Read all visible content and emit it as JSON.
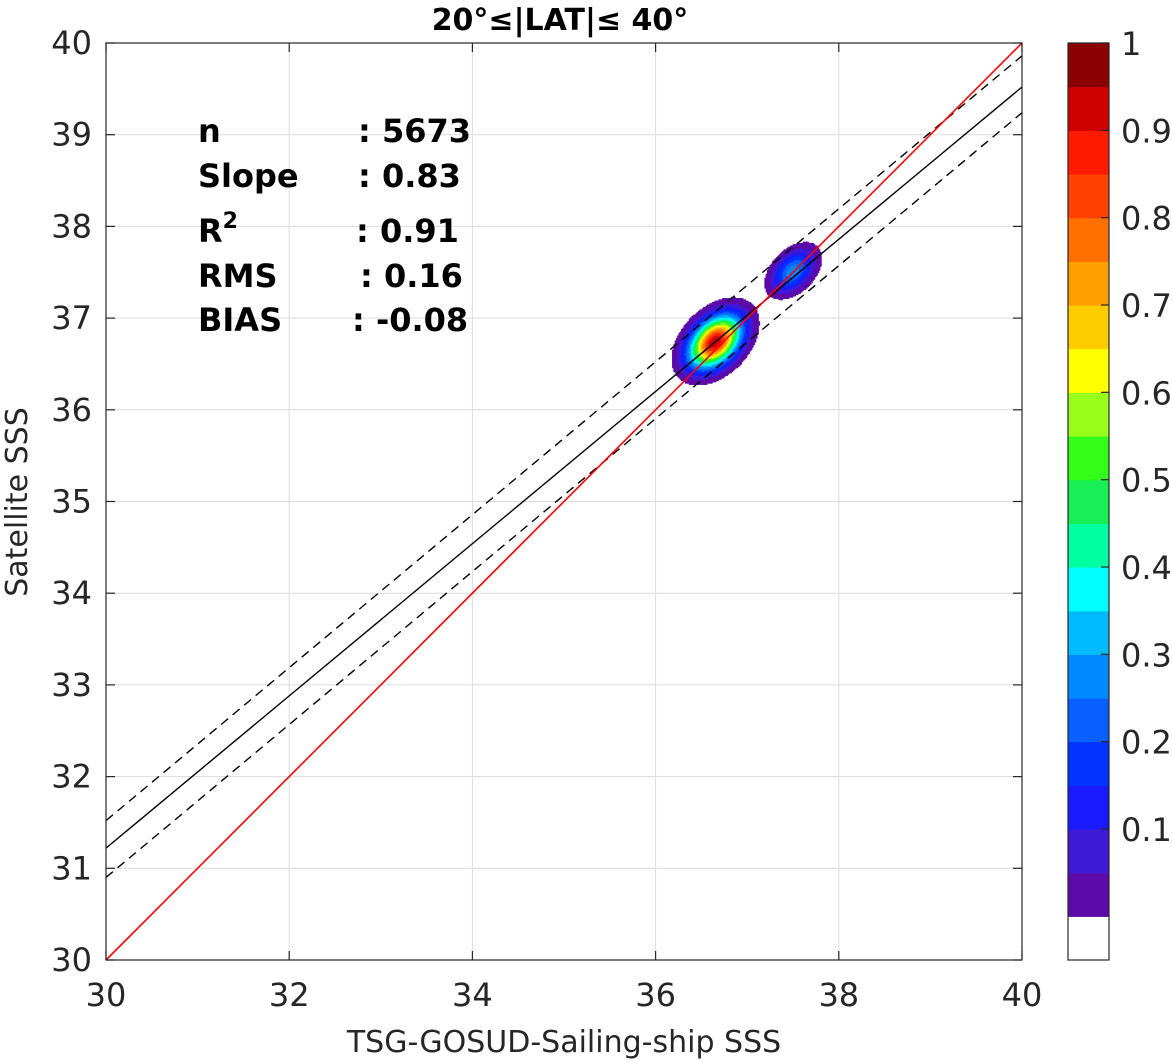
{
  "chart_data": {
    "type": "heatmap",
    "title": "20°≤|LAT|≤ 40°",
    "xlabel": "TSG-GOSUD-Sailing-ship SSS",
    "ylabel": "Satellite SSS",
    "xlim": [
      30,
      40
    ],
    "ylim": [
      30,
      40
    ],
    "xticks": [
      "30",
      "32",
      "34",
      "36",
      "38",
      "40"
    ],
    "yticks": [
      "30",
      "31",
      "32",
      "33",
      "34",
      "35",
      "36",
      "37",
      "38",
      "39",
      "40"
    ],
    "grid": true,
    "stats": [
      {
        "label": "n",
        "value": ": 5673"
      },
      {
        "label": "Slope",
        "value": ": 0.83"
      },
      {
        "label": "R",
        "sup": "2",
        "value": ": 0.91"
      },
      {
        "label": "RMS",
        "value": ": 0.16"
      },
      {
        "label": "BIAS",
        "value": ": -0.08"
      }
    ],
    "lines": {
      "one_to_one": {
        "color": "#ff0000",
        "x": [
          30,
          40
        ],
        "y": [
          30,
          40
        ]
      },
      "fit": {
        "color": "#000000",
        "style": "solid",
        "x": [
          30,
          40
        ],
        "y": [
          31.22,
          39.52
        ]
      },
      "fit_upper": {
        "color": "#000000",
        "style": "dashed",
        "x": [
          30,
          40
        ],
        "y": [
          31.52,
          39.86
        ]
      },
      "fit_lower": {
        "color": "#000000",
        "style": "dashed",
        "x": [
          30,
          40
        ],
        "y": [
          30.9,
          39.24
        ]
      }
    },
    "density_peaks": [
      {
        "x": 36.65,
        "y": 36.75,
        "value": 1.0
      },
      {
        "x": 37.5,
        "y": 37.52,
        "value": 0.33
      }
    ],
    "colorbar": {
      "ticks": [
        "0.1",
        "0.2",
        "0.3",
        "0.4",
        "0.5",
        "0.6",
        "0.7",
        "0.8",
        "0.9",
        "1"
      ],
      "colors": [
        "#ffffff",
        "#5c0aa8",
        "#3d1ad6",
        "#1a1aff",
        "#0033ff",
        "#0a5fff",
        "#0088ff",
        "#00bbff",
        "#00ffff",
        "#00ffa0",
        "#1aee55",
        "#33ff1a",
        "#99ff1a",
        "#ffff00",
        "#ffcc00",
        "#ffa000",
        "#ff7000",
        "#ff4000",
        "#ff1a00",
        "#d00000",
        "#8b0000"
      ]
    }
  }
}
